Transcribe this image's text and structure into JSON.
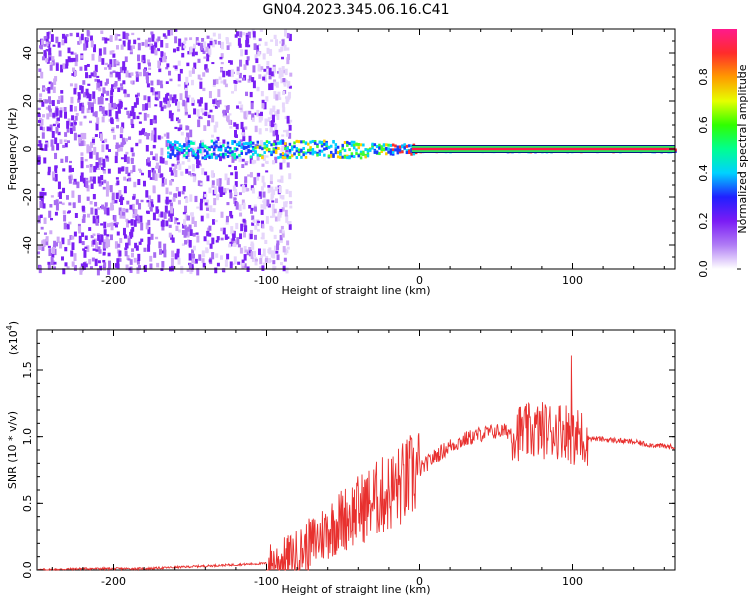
{
  "title": "GN04.2023.345.06.16.C41",
  "chart_data": [
    {
      "type": "heatmap",
      "xlabel": "Height of straight line (km)",
      "ylabel": "Frequency (Hz)",
      "xlim": [
        -250,
        167
      ],
      "ylim": [
        -50,
        50
      ],
      "xticks": [
        -200,
        -100,
        0,
        100
      ],
      "yticks": [
        -40,
        -20,
        0,
        20,
        40
      ],
      "colorbar": {
        "label": "Normalized spectral amplitude",
        "range": [
          0,
          1
        ],
        "ticks": [
          "0.0",
          "0.2",
          "0.4",
          "0.6",
          "0.8"
        ],
        "colors": [
          "#ffffff",
          "#b07cf5",
          "#7b1cf5",
          "#2020ff",
          "#00d2ff",
          "#00ff90",
          "#30ff00",
          "#e6ff00",
          "#ff9a00",
          "#ff2b2b",
          "#ff1a8c"
        ]
      },
      "grid": false
    },
    {
      "type": "line",
      "xlabel": "Height of straight line (km)",
      "ylabel": "SNR (10 * v/v)",
      "yscale_label": "(x10",
      "yscale_exp": "4",
      "xlim": [
        -250,
        167
      ],
      "ylim": [
        0,
        1.8
      ],
      "xticks": [
        -200,
        -100,
        0,
        100
      ],
      "yticks": [
        "0.0",
        "0.5",
        "1.0",
        "1.5"
      ],
      "color": "#e8312f",
      "series": [
        {
          "x": [
            -250,
            -220,
            -200,
            -180,
            -160,
            -140,
            -120,
            -100,
            -90,
            -80,
            -70,
            -60,
            -50,
            -40,
            -30,
            -20,
            -10,
            0,
            10,
            20,
            30,
            40,
            50,
            60,
            70,
            80,
            90,
            95,
            100,
            105,
            110,
            120,
            130,
            140,
            150,
            167
          ],
          "y": [
            0.0,
            0.01,
            0.01,
            0.01,
            0.02,
            0.03,
            0.04,
            0.05,
            0.07,
            0.12,
            0.2,
            0.3,
            0.38,
            0.45,
            0.52,
            0.58,
            0.65,
            0.75,
            0.85,
            0.93,
            0.98,
            1.02,
            1.04,
            1.04,
            1.03,
            1.05,
            1.05,
            1.06,
            1.0,
            1.0,
            0.99,
            0.98,
            0.97,
            0.96,
            0.94,
            0.92
          ]
        }
      ]
    }
  ]
}
